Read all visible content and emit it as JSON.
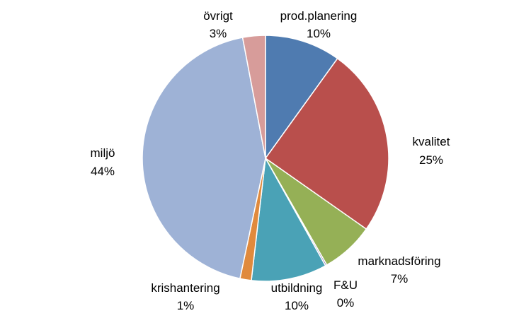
{
  "chart_data": {
    "type": "pie",
    "title": "",
    "start_angle_deg": 0,
    "direction": "clockwise",
    "legend": "none",
    "slices": [
      {
        "label": "prod.planering",
        "value": 10,
        "display": "10%",
        "color": "#4F7BB0"
      },
      {
        "label": "kvalitet",
        "value": 25,
        "display": "25%",
        "color": "#B94F4C"
      },
      {
        "label": "marknadsföring",
        "value": 7,
        "display": "7%",
        "color": "#95B056"
      },
      {
        "label": "F&U",
        "value": 0.2,
        "display": "0%",
        "color": "#7A5F9E"
      },
      {
        "label": "utbildning",
        "value": 10,
        "display": "10%",
        "color": "#4AA2B6"
      },
      {
        "label": "krishantering",
        "value": 1.5,
        "display": "1%",
        "color": "#E08A3D"
      },
      {
        "label": "miljö",
        "value": 44,
        "display": "44%",
        "color": "#9EB2D6"
      },
      {
        "label": "övrigt",
        "value": 3,
        "display": "3%",
        "color": "#D79C9A"
      }
    ]
  }
}
